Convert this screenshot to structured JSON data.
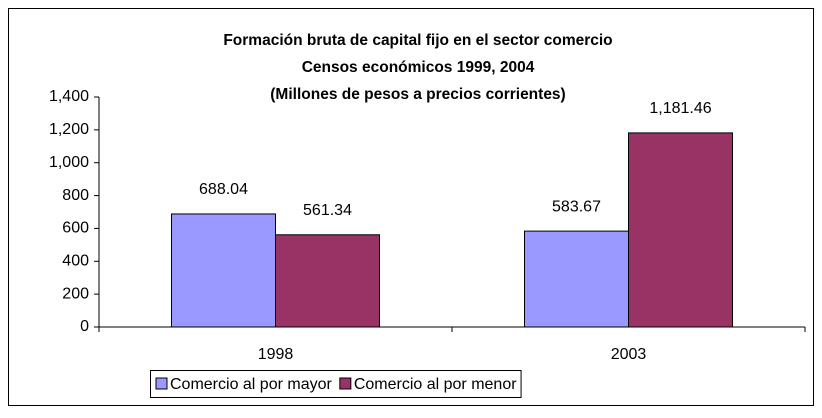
{
  "chart_data": {
    "type": "bar",
    "title": [
      "Formación bruta de capital fijo en el sector comercio",
      "Censos económicos 1999, 2004",
      "(Millones de pesos a precios corrientes)"
    ],
    "categories": [
      "1998",
      "2003"
    ],
    "series": [
      {
        "name": "Comercio al por mayor",
        "color": "#9999ff",
        "values": [
          688.04,
          583.67
        ]
      },
      {
        "name": "Comercio al por menor",
        "color": "#993366",
        "values": [
          561.34,
          1181.46
        ],
        "value_labels": [
          "561.34",
          "1,181.46"
        ]
      }
    ],
    "ylim": [
      0,
      1400
    ],
    "yticks": [
      0,
      200,
      400,
      600,
      800,
      {
        "value": 1000,
        "label": "1,000"
      },
      {
        "value": 1200,
        "label": "1,200"
      },
      {
        "value": 1400,
        "label": "1,400"
      }
    ],
    "legend": "bottom"
  }
}
